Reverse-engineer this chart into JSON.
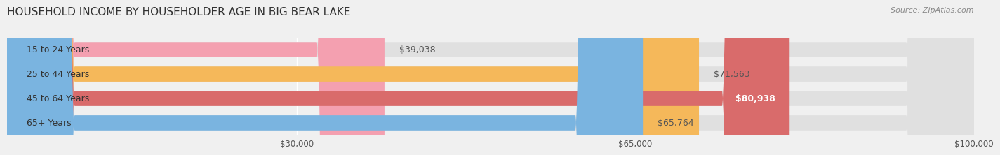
{
  "title": "HOUSEHOLD INCOME BY HOUSEHOLDER AGE IN BIG BEAR LAKE",
  "source": "Source: ZipAtlas.com",
  "categories": [
    "15 to 24 Years",
    "25 to 44 Years",
    "45 to 64 Years",
    "65+ Years"
  ],
  "values": [
    39038,
    71563,
    80938,
    65764
  ],
  "bar_colors": [
    "#f4a0b0",
    "#f5b85a",
    "#d96b6b",
    "#7ab4e0"
  ],
  "label_colors": [
    "#555555",
    "#555555",
    "#ffffff",
    "#555555"
  ],
  "value_labels": [
    "$39,038",
    "$71,563",
    "$80,938",
    "$65,764"
  ],
  "xlim": [
    0,
    100000
  ],
  "xticks": [
    30000,
    65000,
    100000
  ],
  "xticklabels": [
    "$30,000",
    "$65,000",
    "$100,000"
  ],
  "background_color": "#f0f0f0",
  "bar_background_color": "#e0e0e0",
  "title_fontsize": 11,
  "source_fontsize": 8,
  "label_fontsize": 9,
  "tick_fontsize": 8.5,
  "rounding_size": 7000
}
